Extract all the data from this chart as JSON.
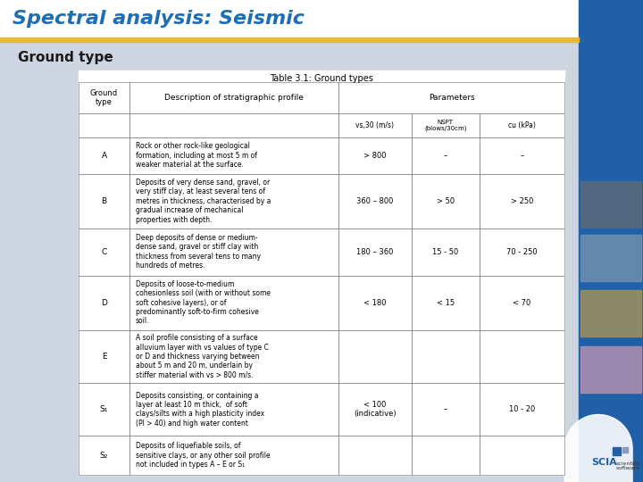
{
  "title": "Spectral analysis: Seismic",
  "subtitle": "Ground type",
  "title_color": "#1F6DB5",
  "subtitle_color": "#1a1a1a",
  "separator_color": "#E8B830",
  "background_color": "#CDD5E0",
  "sidebar_color": "#2060A8",
  "table_title": "Table 3.1: Ground types",
  "param_headers": [
    "vs,30 (m/s)",
    "NSPT\n(blows/30cm)",
    "cu (kPa)"
  ],
  "rows": [
    {
      "type": "A",
      "desc": "Rock or other rock-like geological\nformation, including at most 5 m of\nweaker material at the surface.",
      "vs30": "> 800",
      "nspt": "–",
      "cu": "–"
    },
    {
      "type": "B",
      "desc": "Deposits of very dense sand, gravel, or\nvery stiff clay, at least several tens of\nmetres in thickness, characterised by a\ngradual increase of mechanical\nproperties with depth.",
      "vs30": "360 – 800",
      "nspt": "> 50",
      "cu": "> 250"
    },
    {
      "type": "C",
      "desc": "Deep deposits of dense or medium-\ndense sand, gravel or stiff clay with\nthickness from several tens to many\nhundreds of metres.",
      "vs30": "180 – 360",
      "nspt": "15 - 50",
      "cu": "70 - 250"
    },
    {
      "type": "D",
      "desc": "Deposits of loose-to-medium\ncohesionless soil (with or without some\nsoft cohesive layers), or of\npredominantly soft-to-firm cohesive\nsoil.",
      "vs30": "< 180",
      "nspt": "< 15",
      "cu": "< 70"
    },
    {
      "type": "E",
      "desc": "A soil profile consisting of a surface\nalluvium layer with vs values of type C\nor D and thickness varying between\nabout 5 m and 20 m, underlain by\nstiffer material with vs > 800 m/s.",
      "vs30": "",
      "nspt": "",
      "cu": ""
    },
    {
      "type": "S₁",
      "desc": "Deposits consisting, or containing a\nlayer at least 10 m thick,  of soft\nclays/silts with a high plasticity index\n(PI > 40) and high water content",
      "vs30": "< 100\n(indicative)",
      "nspt": "–",
      "cu": "10 - 20"
    },
    {
      "type": "S₂",
      "desc": "Deposits of liquefiable soils, of\nsensitive clays, or any other soil profile\nnot included in types A – E or S₁",
      "vs30": "",
      "nspt": "",
      "cu": ""
    }
  ]
}
